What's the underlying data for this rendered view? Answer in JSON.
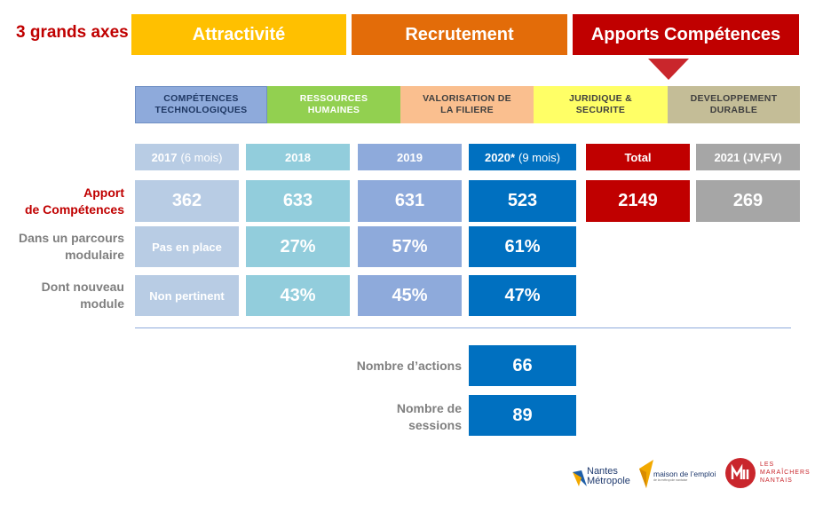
{
  "title": "3 grands axes",
  "axes": [
    "Attractivité",
    "Recrutement",
    "Apports Compétences"
  ],
  "categories": [
    {
      "line1": "COMPÉTENCES",
      "line2": "TECHNOLOGIQUES"
    },
    {
      "line1": "RESSOURCES",
      "line2": "HUMAINES"
    },
    {
      "line1": "VALORISATION DE",
      "line2": "LA FILIERE"
    },
    {
      "line1": "JURIDIQUE &",
      "line2": "SECURITE"
    },
    {
      "line1": "DEVELOPPEMENT",
      "line2": "DURABLE"
    }
  ],
  "years": [
    {
      "label": "2017",
      "note": "(6 mois)"
    },
    {
      "label": "2018",
      "note": ""
    },
    {
      "label": "2019",
      "note": ""
    },
    {
      "label": "2020*",
      "note": "(9 mois)"
    }
  ],
  "total_label": "Total",
  "y2021_label": "2021 (JV,FV)",
  "rows": [
    {
      "label_line1": "Apport",
      "label_line2": "de Compétences",
      "values": [
        "362",
        "633",
        "631",
        "523"
      ]
    },
    {
      "label_line1": "Dans un parcours",
      "label_line2": "modulaire",
      "values": [
        "Pas en place",
        "27%",
        "57%",
        "61%"
      ]
    },
    {
      "label_line1": "Dont nouveau",
      "label_line2": "module",
      "values": [
        "Non pertinent",
        "43%",
        "45%",
        "47%"
      ]
    }
  ],
  "total_value": "2149",
  "y2021_value": "269",
  "stats": [
    {
      "label_line1": "Nombre d’actions",
      "label_line2": "",
      "value": "66"
    },
    {
      "label_line1": "Nombre de",
      "label_line2": "sessions",
      "value": "89"
    }
  ],
  "logos": {
    "nantes_line1": "Nantes",
    "nantes_line2": "Métropole",
    "mde": "maison de l’emploi",
    "mde_sub": "de la métropole nantaise",
    "maraichers_line1": "LES",
    "maraichers_line2": "MARAÎCHERS",
    "maraichers_line3": "NANTAIS"
  },
  "colors": {
    "attractivite": "#ffc000",
    "recrutement": "#e36c09",
    "apports": "#c00000",
    "col_2017": "#b8cce4",
    "col_2018": "#92cddc",
    "col_2019": "#8eaadb",
    "col_2020": "#0070c0",
    "total": "#c00000",
    "y2021": "#a6a6a6"
  }
}
